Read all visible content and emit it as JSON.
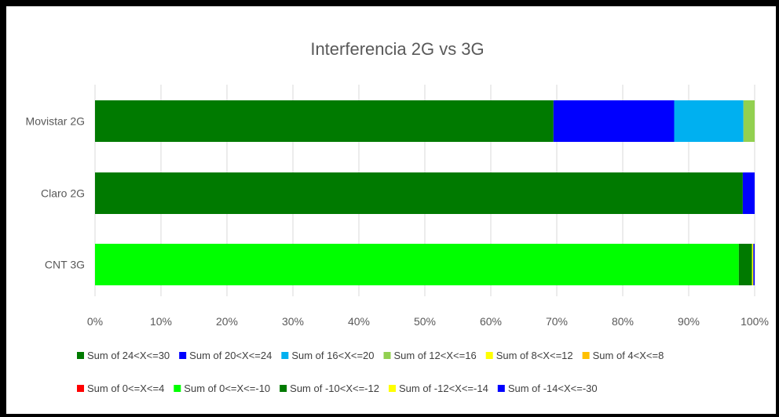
{
  "chart_data": {
    "type": "bar",
    "orientation": "horizontal",
    "stacked": "percent",
    "title": "Interferencia 2G vs 3G",
    "categories": [
      "Movistar 2G",
      "Claro 2G",
      "CNT 3G"
    ],
    "x_ticks": [
      "0%",
      "10%",
      "20%",
      "30%",
      "40%",
      "50%",
      "60%",
      "70%",
      "80%",
      "90%",
      "100%"
    ],
    "xlim": [
      0,
      100
    ],
    "grid": "vertical",
    "legend_position": "bottom",
    "series": [
      {
        "name": "Sum of 24<X<=30",
        "color": "#007a00",
        "values": [
          69.5,
          98.2,
          0
        ]
      },
      {
        "name": "Sum of 20<X<=24",
        "color": "#0000ff",
        "values": [
          18.3,
          1.8,
          0
        ]
      },
      {
        "name": "Sum of 16<X<=20",
        "color": "#00b0f0",
        "values": [
          10.5,
          0,
          0
        ]
      },
      {
        "name": "Sum of 12<X<=16",
        "color": "#92d050",
        "values": [
          1.7,
          0,
          0
        ]
      },
      {
        "name": "Sum of 8<X<=12",
        "color": "#ffff00",
        "values": [
          0,
          0,
          0
        ]
      },
      {
        "name": "Sum of 4<X<=8",
        "color": "#ffc000",
        "values": [
          0,
          0,
          0
        ]
      },
      {
        "name": "Sum of 0<=X<=4",
        "color": "#ff0000",
        "values": [
          0,
          0,
          0
        ]
      },
      {
        "name": "Sum of 0<=X<=-10",
        "color": "#00ff00",
        "values": [
          0,
          0,
          97.6
        ]
      },
      {
        "name": "Sum of -10<X<=-12",
        "color": "#007a00",
        "values": [
          0,
          0,
          2.0
        ]
      },
      {
        "name": "Sum of -12<X<=-14",
        "color": "#ffff00",
        "values": [
          0,
          0,
          0.2
        ]
      },
      {
        "name": "Sum of -14<X<=-30",
        "color": "#0000ff",
        "values": [
          0,
          0,
          0.2
        ]
      }
    ]
  }
}
